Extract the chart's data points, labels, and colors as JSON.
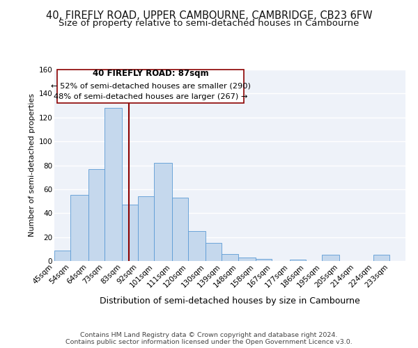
{
  "title1": "40, FIREFLY ROAD, UPPER CAMBOURNE, CAMBRIDGE, CB23 6FW",
  "title2": "Size of property relative to semi-detached houses in Cambourne",
  "xlabel": "Distribution of semi-detached houses by size in Cambourne",
  "ylabel": "Number of semi-detached properties",
  "footnote1": "Contains HM Land Registry data © Crown copyright and database right 2024.",
  "footnote2": "Contains public sector information licensed under the Open Government Licence v3.0.",
  "bin_labels": [
    "45sqm",
    "54sqm",
    "64sqm",
    "73sqm",
    "83sqm",
    "92sqm",
    "101sqm",
    "111sqm",
    "120sqm",
    "130sqm",
    "139sqm",
    "148sqm",
    "158sqm",
    "167sqm",
    "177sqm",
    "186sqm",
    "195sqm",
    "205sqm",
    "214sqm",
    "224sqm",
    "233sqm"
  ],
  "bin_edges": [
    45,
    54,
    64,
    73,
    83,
    92,
    101,
    111,
    120,
    130,
    139,
    148,
    158,
    167,
    177,
    186,
    195,
    205,
    214,
    224,
    233
  ],
  "bar_heights": [
    9,
    55,
    77,
    128,
    47,
    54,
    82,
    53,
    25,
    15,
    6,
    3,
    2,
    0,
    1,
    0,
    5,
    0,
    0,
    5
  ],
  "bar_color": "#c5d8ed",
  "bar_edge_color": "#5b9bd5",
  "property_size": 87,
  "vline_color": "#8b0000",
  "annotation_text1": "40 FIREFLY ROAD: 87sqm",
  "annotation_text2": "← 52% of semi-detached houses are smaller (290)",
  "annotation_text3": "48% of semi-detached houses are larger (267) →",
  "annotation_box_color": "#ffffff",
  "annotation_box_edge": "#8b0000",
  "ylim": [
    0,
    160
  ],
  "yticks": [
    0,
    20,
    40,
    60,
    80,
    100,
    120,
    140,
    160
  ],
  "bg_color": "#eef2f9",
  "grid_color": "#ffffff",
  "title1_fontsize": 10.5,
  "title2_fontsize": 9.5,
  "xlabel_fontsize": 9,
  "ylabel_fontsize": 8,
  "tick_fontsize": 7.5,
  "annotation_fontsize": 8.5,
  "footnote_fontsize": 6.8
}
